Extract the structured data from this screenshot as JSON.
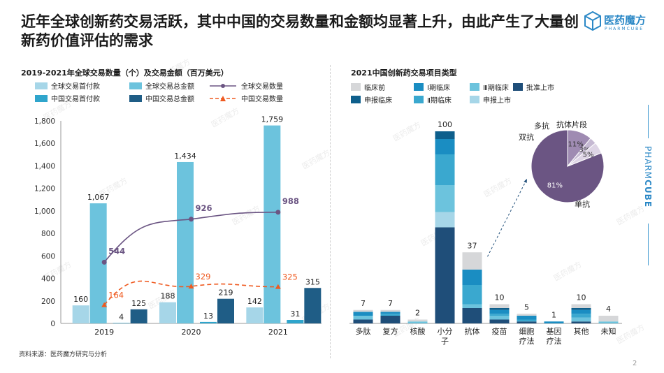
{
  "page": {
    "title": "近年全球创新药交易活跃，其中中国的交易数量和金额均显著上升，由此产生了大量创新药价值评估的需求",
    "logo_text": "医药魔方",
    "logo_sub": "PHARMCUBE",
    "side_brand_1": "PHARM",
    "side_brand_2": "CUBE",
    "source": "资料来源：医药魔方研究与分析",
    "page_number": "2",
    "watermark": "医药魔方",
    "colors": {
      "light_blue": "#a6d6e8",
      "cyan": "#6cc3dd",
      "navy": "#1f5d86",
      "purple_line": "#6b5583",
      "orange_line": "#ef5a20",
      "brand_blue": "#2b88c6"
    }
  },
  "chart_data": [
    {
      "type": "bar",
      "title": "2019-2021年全球交易数量（个）及交易金额（百万美元）",
      "categories": [
        "2019",
        "2020",
        "2021"
      ],
      "ylim": [
        0,
        1800
      ],
      "yticks": [
        "0",
        "200",
        "400",
        "600",
        "800",
        "1,000",
        "1,200",
        "1,400",
        "1,600",
        "1,800"
      ],
      "series": [
        {
          "name": "全球交易首付款",
          "kind": "bar",
          "color": "#a6d6e8",
          "values": [
            160,
            188,
            142
          ],
          "labels": [
            "160",
            "188",
            "142"
          ]
        },
        {
          "name": "全球交易总金额",
          "kind": "bar",
          "color": "#6cc3dd",
          "values": [
            1067,
            1434,
            1759
          ],
          "labels": [
            "1,067",
            "1,434",
            "1,759"
          ]
        },
        {
          "name": "中国交易首付款",
          "kind": "bar",
          "color": "#2fa5cc",
          "values": [
            4,
            13,
            31
          ],
          "labels": [
            "4",
            "13",
            "31"
          ]
        },
        {
          "name": "中国交易总金额",
          "kind": "bar",
          "color": "#1f5d86",
          "values": [
            125,
            219,
            315
          ],
          "labels": [
            "125",
            "219",
            "315"
          ]
        },
        {
          "name": "全球交易数量",
          "kind": "line",
          "color": "#6b5583",
          "values": [
            544,
            926,
            988
          ],
          "labels": [
            "544",
            "926",
            "988"
          ]
        },
        {
          "name": "中国交易数量",
          "kind": "line-dashed",
          "color": "#ef5a20",
          "values": [
            164,
            329,
            325
          ],
          "labels": [
            "164",
            "329",
            "325"
          ]
        }
      ],
      "legend": "top"
    },
    {
      "type": "bar",
      "stacked": true,
      "title": "2021中国创新药交易项目类型",
      "categories": [
        "多肽",
        "复方",
        "核酸",
        "小分子",
        "抗体",
        "疫苗",
        "细胞疗法",
        "基因疗法",
        "其他",
        "未知"
      ],
      "totals": [
        7,
        7,
        2,
        100,
        37,
        10,
        5,
        1,
        10,
        4
      ],
      "series": [
        {
          "name": "批准上市",
          "color": "#1f4e79",
          "values": [
            2,
            4,
            0,
            50,
            8,
            2,
            1,
            0,
            1,
            0
          ]
        },
        {
          "name": "申报上市",
          "color": "#a6d6e8",
          "values": [
            0,
            0,
            0,
            8,
            0,
            0,
            0,
            0,
            0,
            0
          ]
        },
        {
          "name": "Ⅲ期临床",
          "color": "#6cc3dd",
          "values": [
            2,
            0,
            1,
            14,
            2,
            2,
            0,
            0,
            2,
            1
          ]
        },
        {
          "name": "Ⅱ期临床",
          "color": "#3aa8cf",
          "values": [
            0,
            1,
            0,
            16,
            10,
            1,
            1,
            0,
            2,
            0
          ]
        },
        {
          "name": "Ⅰ期临床",
          "color": "#1a8dc2",
          "values": [
            2,
            1,
            0,
            8,
            8,
            2,
            2,
            1,
            2,
            0
          ]
        },
        {
          "name": "申报临床",
          "color": "#0e5f8c",
          "values": [
            0,
            0,
            0,
            4,
            0,
            1,
            0,
            0,
            1,
            0
          ]
        },
        {
          "name": "临床前",
          "color": "#d6d7d9",
          "values": [
            1,
            1,
            1,
            0,
            9,
            2,
            1,
            0,
            2,
            3
          ]
        }
      ],
      "legend_order": [
        "临床前",
        "Ⅰ期临床",
        "Ⅲ期临床",
        "批准上市",
        "申报临床",
        "Ⅱ期临床",
        "申报上市"
      ],
      "legend": "top"
    },
    {
      "type": "pie",
      "slices": [
        {
          "name": "单抗",
          "value": 81,
          "label": "81%",
          "color": "#6b5583"
        },
        {
          "name": "双抗",
          "value": 11,
          "label": "11%",
          "color": "#9f8bb2"
        },
        {
          "name": "多抗",
          "value": 3,
          "label": "3%",
          "color": "#c5b9d2"
        },
        {
          "name": "抗体片段",
          "value": 5,
          "label": "5%",
          "color": "#ddd4e5"
        }
      ]
    }
  ]
}
